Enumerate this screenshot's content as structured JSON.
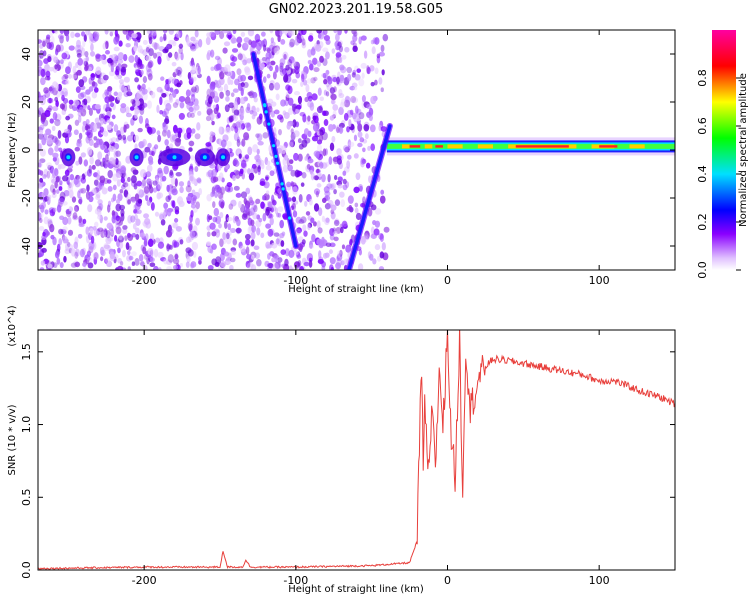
{
  "title": "GN02.2023.201.19.58.G05",
  "colors": {
    "snr_line": "#e8403c",
    "axis": "#000000",
    "spectrogram_noise": "#9b30ff",
    "band_core": "#ff2020"
  },
  "chart_data": [
    {
      "type": "heatmap",
      "xlabel": "Height of straight line (km)",
      "ylabel": "Frequency (Hz)",
      "xlim": [
        -270,
        150
      ],
      "ylim": [
        -50,
        50
      ],
      "xticks": [
        -200,
        -100,
        0,
        100
      ],
      "yticks": [
        -40,
        -20,
        0,
        20,
        40
      ],
      "colorbar": {
        "label": "Normalized spectral amplitude",
        "ticks": [
          "0.0",
          "0.2",
          "0.4",
          "0.6",
          "0.8"
        ],
        "range": [
          0,
          1
        ]
      },
      "features": {
        "noise_region_x": [
          -270,
          -40
        ],
        "steady_band": {
          "x": [
            -40,
            150
          ],
          "freq": 1.5
        },
        "diagonal_track_1": {
          "from": [
            -100,
            -40
          ],
          "to": [
            -128,
            40
          ]
        },
        "diagonal_track_2": {
          "from": [
            -65,
            -50
          ],
          "to": [
            -38,
            10
          ]
        },
        "low_freq_blobs_x": [
          -250,
          -205,
          -180,
          -160,
          -148
        ]
      }
    },
    {
      "type": "line",
      "xlabel": "Height of straight line (km)",
      "ylabel": "SNR (10 * v/v)",
      "y_multiplier": "(x10^4)",
      "xlim": [
        -270,
        150
      ],
      "ylim": [
        0,
        1.65
      ],
      "xticks": [
        -200,
        -100,
        0,
        100
      ],
      "yticks": [
        "0.0",
        "0.5",
        "1.0",
        "1.5"
      ],
      "series": [
        {
          "x": [
            -270,
            -200,
            -150,
            -148,
            -145,
            -140,
            -135,
            -133,
            -130,
            -100,
            -50,
            -25,
            -20,
            -18,
            -17,
            -16,
            -15,
            -13,
            -10,
            -8,
            -5,
            -3,
            0,
            2,
            5,
            8,
            10,
            12,
            15,
            20,
            25,
            30,
            40,
            50,
            60,
            70,
            80,
            90,
            95,
            100,
            110,
            120,
            130,
            140,
            150
          ],
          "values": [
            0.01,
            0.02,
            0.02,
            0.13,
            0.02,
            0.02,
            0.02,
            0.07,
            0.02,
            0.02,
            0.03,
            0.05,
            0.2,
            1.1,
            1.38,
            0.6,
            1.2,
            0.6,
            1.15,
            0.75,
            1.4,
            0.95,
            1.68,
            1.0,
            0.62,
            1.6,
            0.52,
            1.55,
            1.1,
            1.3,
            1.4,
            1.45,
            1.44,
            1.42,
            1.4,
            1.38,
            1.36,
            1.34,
            1.32,
            1.3,
            1.3,
            1.26,
            1.22,
            1.19,
            1.14
          ]
        }
      ]
    }
  ]
}
